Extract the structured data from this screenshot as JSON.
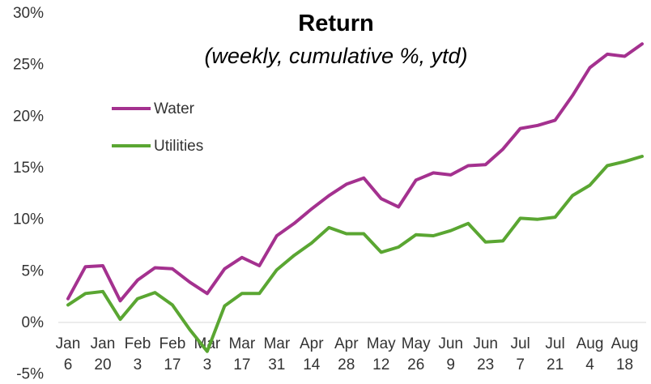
{
  "chart_data": {
    "type": "line",
    "title": "Return",
    "subtitle": "(weekly, cumulative %, ytd)",
    "xlabel": "",
    "ylabel": "",
    "ylim": [
      -5,
      30
    ],
    "yticks": [
      "-5%",
      "0%",
      "5%",
      "10%",
      "15%",
      "20%",
      "25%",
      "30%"
    ],
    "grid": false,
    "legend_position": "top-left",
    "x_tick_labels": [
      [
        "Jan",
        "6"
      ],
      [
        "Jan",
        "20"
      ],
      [
        "Feb",
        "3"
      ],
      [
        "Feb",
        "17"
      ],
      [
        "Mar",
        "3"
      ],
      [
        "Mar",
        "17"
      ],
      [
        "Mar",
        "31"
      ],
      [
        "Apr",
        "14"
      ],
      [
        "Apr",
        "28"
      ],
      [
        "May",
        "12"
      ],
      [
        "May",
        "26"
      ],
      [
        "Jun",
        "9"
      ],
      [
        "Jun",
        "23"
      ],
      [
        "Jul",
        "7"
      ],
      [
        "Jul",
        "21"
      ],
      [
        "Aug",
        "4"
      ],
      [
        "Aug",
        "18"
      ]
    ],
    "x": [
      "Jan 6",
      "Jan 13",
      "Jan 20",
      "Jan 27",
      "Feb 3",
      "Feb 10",
      "Feb 17",
      "Feb 24",
      "Mar 3",
      "Mar 10",
      "Mar 17",
      "Mar 24",
      "Mar 31",
      "Apr 7",
      "Apr 14",
      "Apr 21",
      "Apr 28",
      "May 5",
      "May 12",
      "May 19",
      "May 26",
      "Jun 2",
      "Jun 9",
      "Jun 16",
      "Jun 23",
      "Jun 30",
      "Jul 7",
      "Jul 14",
      "Jul 21",
      "Jul 28",
      "Aug 4",
      "Aug 11",
      "Aug 18",
      "Aug 25"
    ],
    "series": [
      {
        "name": "Water",
        "color": "#a4318f",
        "values": [
          2.3,
          5.4,
          5.5,
          2.1,
          4.1,
          5.3,
          5.2,
          3.9,
          2.8,
          5.2,
          6.3,
          5.5,
          8.4,
          9.6,
          11.0,
          12.3,
          13.4,
          14.0,
          12.0,
          11.2,
          13.8,
          14.5,
          14.3,
          15.2,
          15.3,
          16.8,
          18.8,
          19.1,
          19.6,
          22.0,
          24.7,
          26.0,
          25.8,
          27.0
        ]
      },
      {
        "name": "Utilities",
        "color": "#5aa632",
        "values": [
          1.7,
          2.8,
          3.0,
          0.3,
          2.3,
          2.9,
          1.7,
          -0.7,
          -2.8,
          1.6,
          2.8,
          2.8,
          5.1,
          6.5,
          7.7,
          9.2,
          8.6,
          8.6,
          6.8,
          7.3,
          8.5,
          8.4,
          8.9,
          9.6,
          7.8,
          7.9,
          10.1,
          10.0,
          10.2,
          12.3,
          13.3,
          15.2,
          15.6,
          16.1
        ]
      }
    ]
  }
}
